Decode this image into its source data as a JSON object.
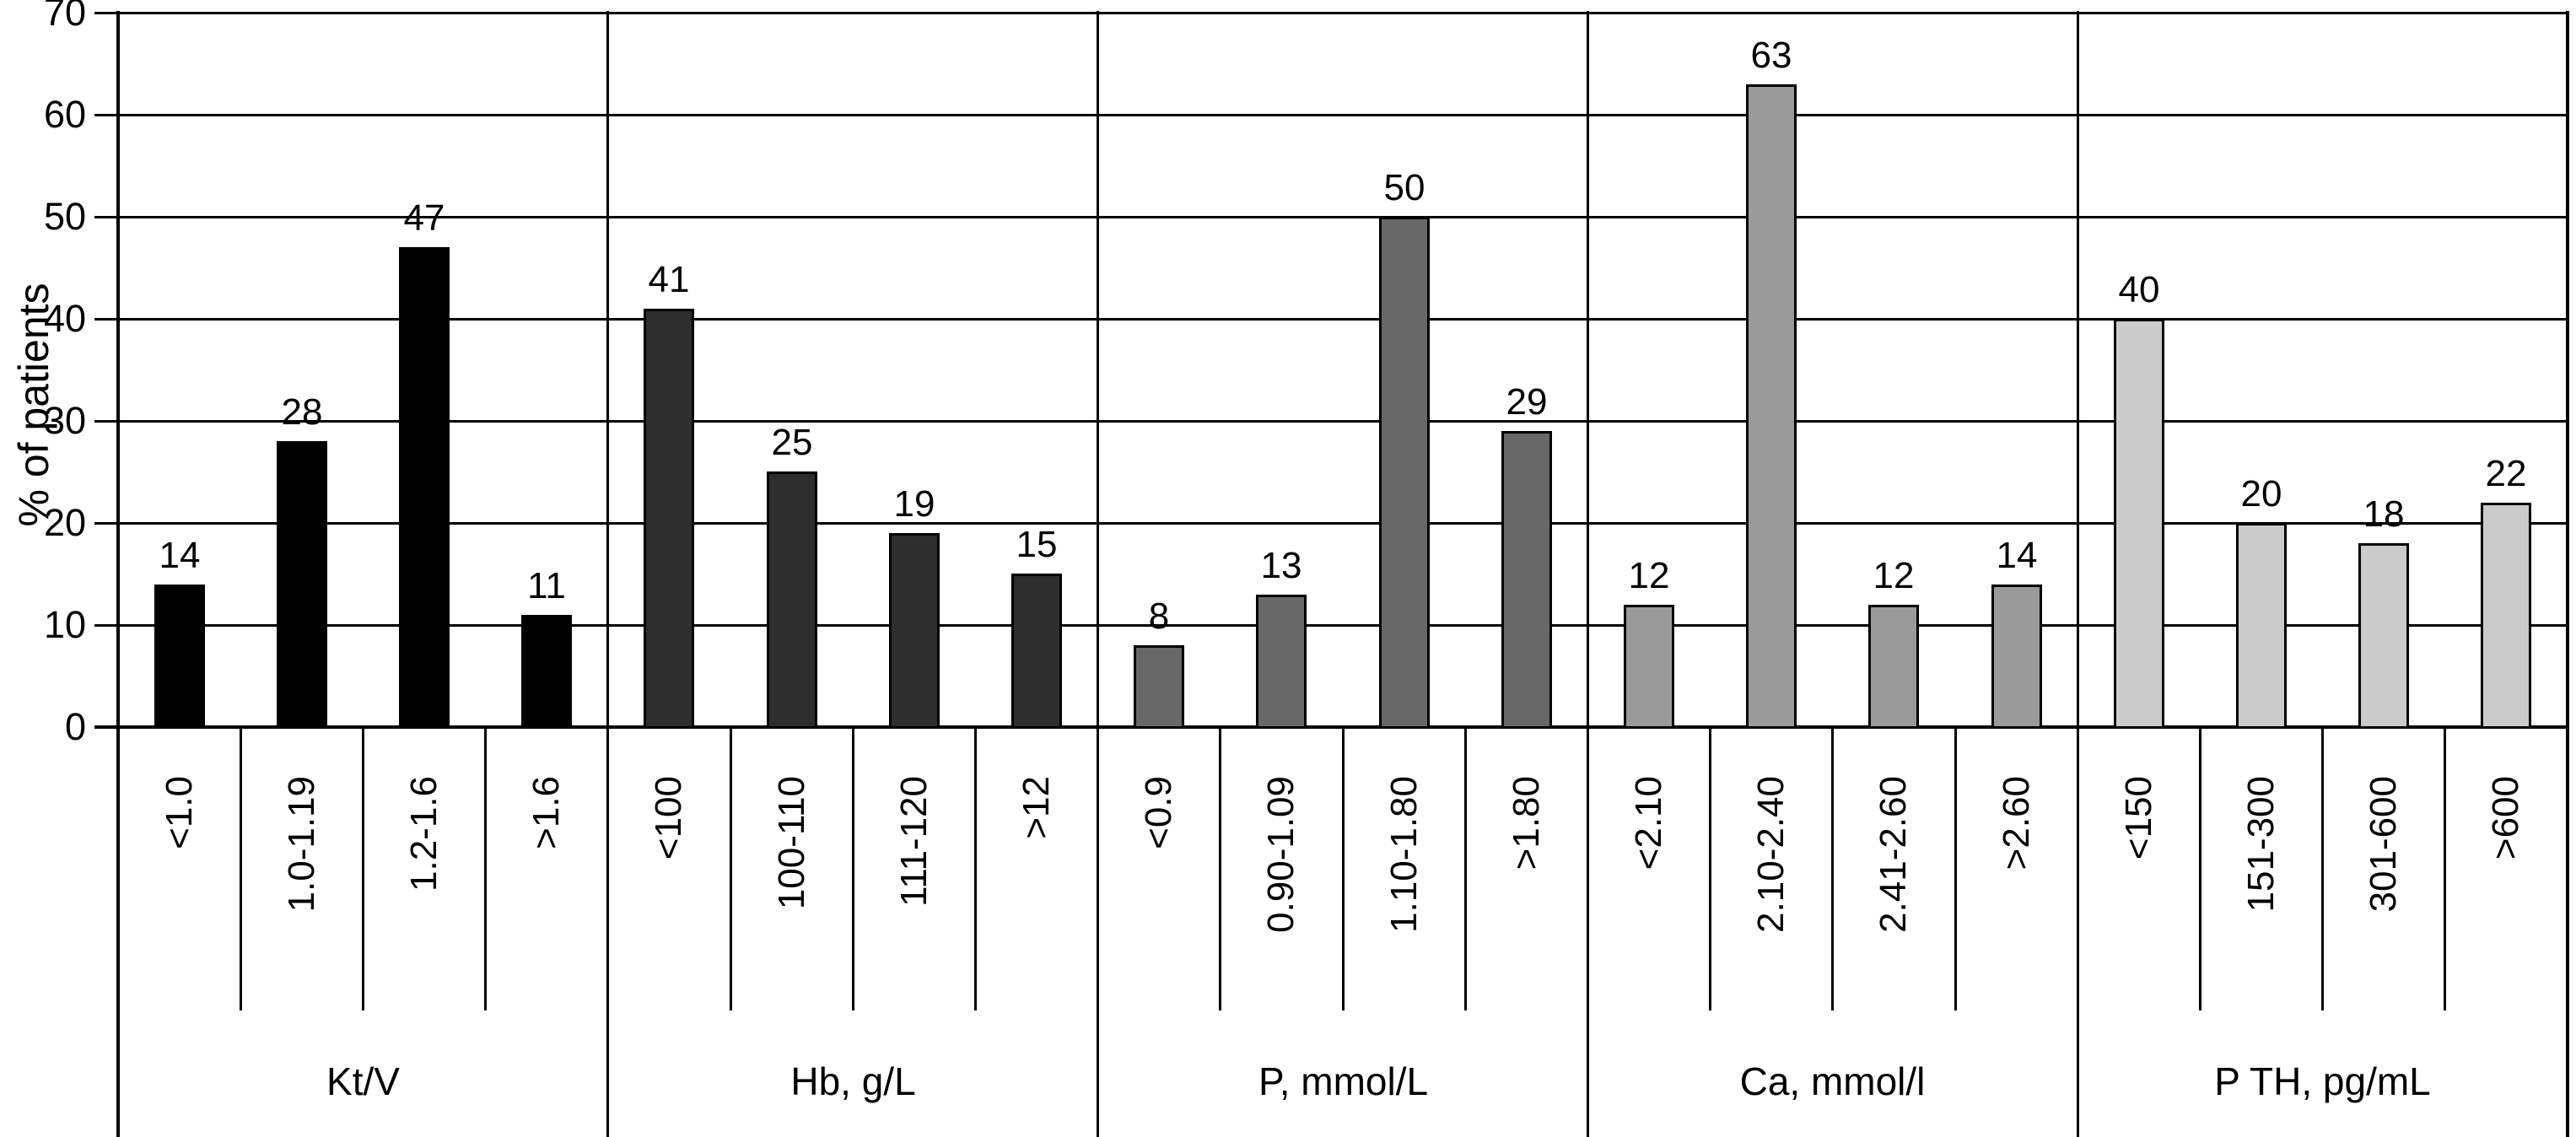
{
  "chart_data": {
    "type": "bar",
    "title": "",
    "ylabel": "% of patients",
    "xlabel": "",
    "ylim": [
      0,
      70
    ],
    "yticks": [
      0,
      10,
      20,
      30,
      40,
      50,
      60,
      70
    ],
    "grid": "horizontal",
    "legend": "none",
    "bar_outline_color": "#000000",
    "groups": [
      {
        "title": "Kt/V",
        "color": "#000000",
        "categories": [
          "<1.0",
          "1.0-1.19",
          "1.2-1.6",
          ">1.6"
        ],
        "values": [
          14,
          28,
          47,
          11
        ]
      },
      {
        "title": "Hb, g/L",
        "color": "#2e2e2e",
        "categories": [
          "<100",
          "100-110",
          "111-120",
          ">12"
        ],
        "values": [
          41,
          25,
          19,
          15
        ]
      },
      {
        "title": "P, mmol/L",
        "color": "#686868",
        "categories": [
          "<0.9",
          "0.90-1.09",
          "1.10-1.80",
          ">1.80"
        ],
        "values": [
          8,
          13,
          50,
          29
        ]
      },
      {
        "title": "Ca, mmol/l",
        "color": "#9a9a9a",
        "categories": [
          "<2.10",
          "2.10-2.40",
          "2.41-2.60",
          ">2.60"
        ],
        "values": [
          12,
          63,
          12,
          14
        ]
      },
      {
        "title": "P TH, pg/mL",
        "color": "#cbcbcb",
        "categories": [
          "<150",
          "151-300",
          "301-600",
          ">600"
        ],
        "values": [
          40,
          20,
          18,
          22
        ]
      }
    ]
  }
}
